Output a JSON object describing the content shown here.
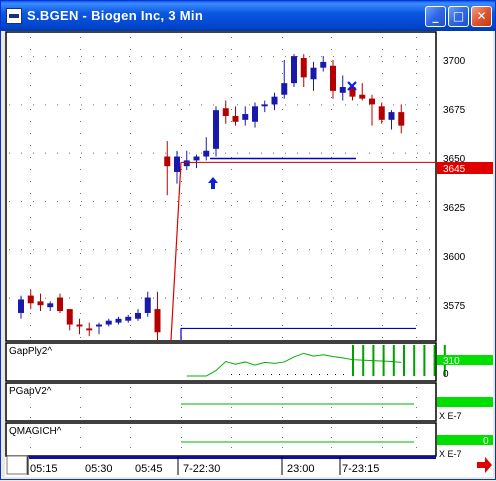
{
  "window": {
    "title": "S.BGEN - Biogen Inc, 3 Min",
    "min_glyph": "_",
    "max_glyph": "□",
    "close_glyph": "✕"
  },
  "price_axis": {
    "labels": [
      "3700",
      "3675",
      "3650",
      "3625",
      "3600",
      "3575"
    ],
    "current_price": "3645",
    "current_price_color": "#e00000"
  },
  "panels": [
    {
      "label": "GapPly2^",
      "value": "310",
      "zero": "0"
    },
    {
      "label": "PGapV2^",
      "scale": "X E-7"
    },
    {
      "label": "QMAGICH^",
      "value": "0",
      "scale": "X E-7"
    }
  ],
  "time_axis": {
    "labels": [
      "05:15",
      "05:30",
      "05:45",
      "7-22:30",
      "23:00",
      "7-23:15"
    ]
  },
  "chart_data": [
    {
      "type": "candlestick",
      "title": "S.BGEN - Biogen Inc, 3 Min",
      "y_axis_labels": [
        "3700",
        "3675",
        "3650",
        "3625",
        "3600",
        "3575"
      ],
      "ylim": [
        3553,
        3713
      ],
      "x_tick_labels": [
        "05:15",
        "05:30",
        "05:45",
        "7-22:30",
        "23:00",
        "7-23:15"
      ],
      "candles": [
        {
          "o": 3567,
          "h": 3576,
          "l": 3564,
          "c": 3574
        },
        {
          "o": 3576,
          "h": 3579,
          "l": 3569,
          "c": 3572
        },
        {
          "o": 3573,
          "h": 3577,
          "l": 3568,
          "c": 3571
        },
        {
          "o": 3570,
          "h": 3573,
          "l": 3568,
          "c": 3572
        },
        {
          "o": 3575,
          "h": 3577,
          "l": 3567,
          "c": 3568
        },
        {
          "o": 3569,
          "h": 3569,
          "l": 3558,
          "c": 3561
        },
        {
          "o": 3561,
          "h": 3564,
          "l": 3556,
          "c": 3560
        },
        {
          "o": 3559,
          "h": 3562,
          "l": 3555,
          "c": 3558
        },
        {
          "o": 3560,
          "h": 3562,
          "l": 3556,
          "c": 3561
        },
        {
          "o": 3561,
          "h": 3564,
          "l": 3560,
          "c": 3563
        },
        {
          "o": 3562,
          "h": 3565,
          "l": 3561,
          "c": 3564
        },
        {
          "o": 3563,
          "h": 3566,
          "l": 3562,
          "c": 3565
        },
        {
          "o": 3564,
          "h": 3569,
          "l": 3563,
          "c": 3567
        },
        {
          "o": 3567,
          "h": 3578,
          "l": 3565,
          "c": 3575
        },
        {
          "o": 3569,
          "h": 3578,
          "l": 3553,
          "c": 3557
        },
        {
          "o": 3648,
          "h": 3656,
          "l": 3628,
          "c": 3643
        },
        {
          "o": 3640,
          "h": 3651,
          "l": 3634,
          "c": 3648
        },
        {
          "o": 3643,
          "h": 3651,
          "l": 3641,
          "c": 3646
        },
        {
          "o": 3646,
          "h": 3649,
          "l": 3642,
          "c": 3648
        },
        {
          "o": 3648,
          "h": 3658,
          "l": 3646,
          "c": 3651
        },
        {
          "o": 3652,
          "h": 3674,
          "l": 3648,
          "c": 3672
        },
        {
          "o": 3673,
          "h": 3677,
          "l": 3665,
          "c": 3669
        },
        {
          "o": 3669,
          "h": 3674,
          "l": 3664,
          "c": 3666
        },
        {
          "o": 3667,
          "h": 3674,
          "l": 3664,
          "c": 3670
        },
        {
          "o": 3666,
          "h": 3676,
          "l": 3663,
          "c": 3674
        },
        {
          "o": 3674,
          "h": 3677,
          "l": 3671,
          "c": 3675
        },
        {
          "o": 3675,
          "h": 3681,
          "l": 3672,
          "c": 3679
        },
        {
          "o": 3680,
          "h": 3698,
          "l": 3678,
          "c": 3686
        },
        {
          "o": 3686,
          "h": 3701,
          "l": 3684,
          "c": 3700
        },
        {
          "o": 3699,
          "h": 3701,
          "l": 3684,
          "c": 3689
        },
        {
          "o": 3688,
          "h": 3697,
          "l": 3682,
          "c": 3694
        },
        {
          "o": 3694,
          "h": 3700,
          "l": 3692,
          "c": 3697
        },
        {
          "o": 3695,
          "h": 3698,
          "l": 3678,
          "c": 3682
        },
        {
          "o": 3681,
          "h": 3690,
          "l": 3677,
          "c": 3684
        },
        {
          "o": 3684,
          "h": 3684,
          "l": 3677,
          "c": 3679
        },
        {
          "o": 3680,
          "h": 3686,
          "l": 3677,
          "c": 3678
        },
        {
          "o": 3678,
          "h": 3680,
          "l": 3664,
          "c": 3675
        },
        {
          "o": 3674,
          "h": 3676,
          "l": 3665,
          "c": 3667
        },
        {
          "o": 3667,
          "h": 3672,
          "l": 3662,
          "c": 3671
        },
        {
          "o": 3671,
          "h": 3675,
          "l": 3660,
          "c": 3664
        }
      ],
      "up_color": "#1a1aaa",
      "down_color": "#b40000",
      "blue_level": 3647,
      "red_level": 3645,
      "lower_blue_level": 3559
    },
    {
      "type": "line",
      "name": "GapPly2^",
      "values": [
        0,
        0,
        0,
        0,
        0,
        0,
        0,
        0,
        0,
        0,
        0,
        0,
        0,
        0,
        0,
        0,
        0,
        0,
        0,
        0,
        60,
        160,
        130,
        155,
        120,
        150,
        140,
        155,
        210,
        250,
        220,
        235,
        215,
        200,
        180,
        175,
        170,
        165,
        160,
        150
      ],
      "bar_values": [
        310,
        310,
        310,
        310,
        310,
        310,
        310,
        310,
        310,
        310
      ],
      "color": "#00a000"
    }
  ]
}
